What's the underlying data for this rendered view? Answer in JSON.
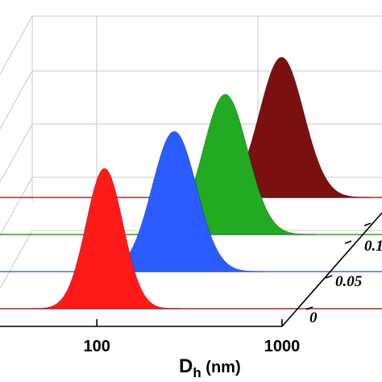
{
  "chart_data": {
    "type": "area",
    "style": "3d-waterfall",
    "title": "",
    "x_axis": {
      "label_main": "D",
      "label_sub": "h",
      "label_unit": " (nm)",
      "scale": "log",
      "ticks": [
        {
          "value": 100,
          "label": "100"
        },
        {
          "value": 1000,
          "label": "1000"
        }
      ]
    },
    "grid": true,
    "series": [
      {
        "name": "0",
        "label": "0",
        "peak_x": 110,
        "width_log": 0.1,
        "peak_y": 1.0,
        "fill": "#ff1a1a",
        "line": "#b3202a"
      },
      {
        "name": "0.05",
        "label": "0.05",
        "peak_x": 190,
        "width_log": 0.12,
        "peak_y": 1.0,
        "fill": "#2a5cff",
        "line": "#5a6fc0"
      },
      {
        "name": "0.1",
        "label": "0.1",
        "peak_x": 260,
        "width_log": 0.12,
        "peak_y": 1.0,
        "fill": "#22aa22",
        "line": "#2aa02a"
      },
      {
        "name": "",
        "label": "",
        "peak_x": 380,
        "width_log": 0.12,
        "peak_y": 1.0,
        "fill": "#7a1010",
        "line": "#a03030"
      }
    ],
    "series_label_visible": [
      "0",
      "0.05",
      "0.1"
    ]
  }
}
